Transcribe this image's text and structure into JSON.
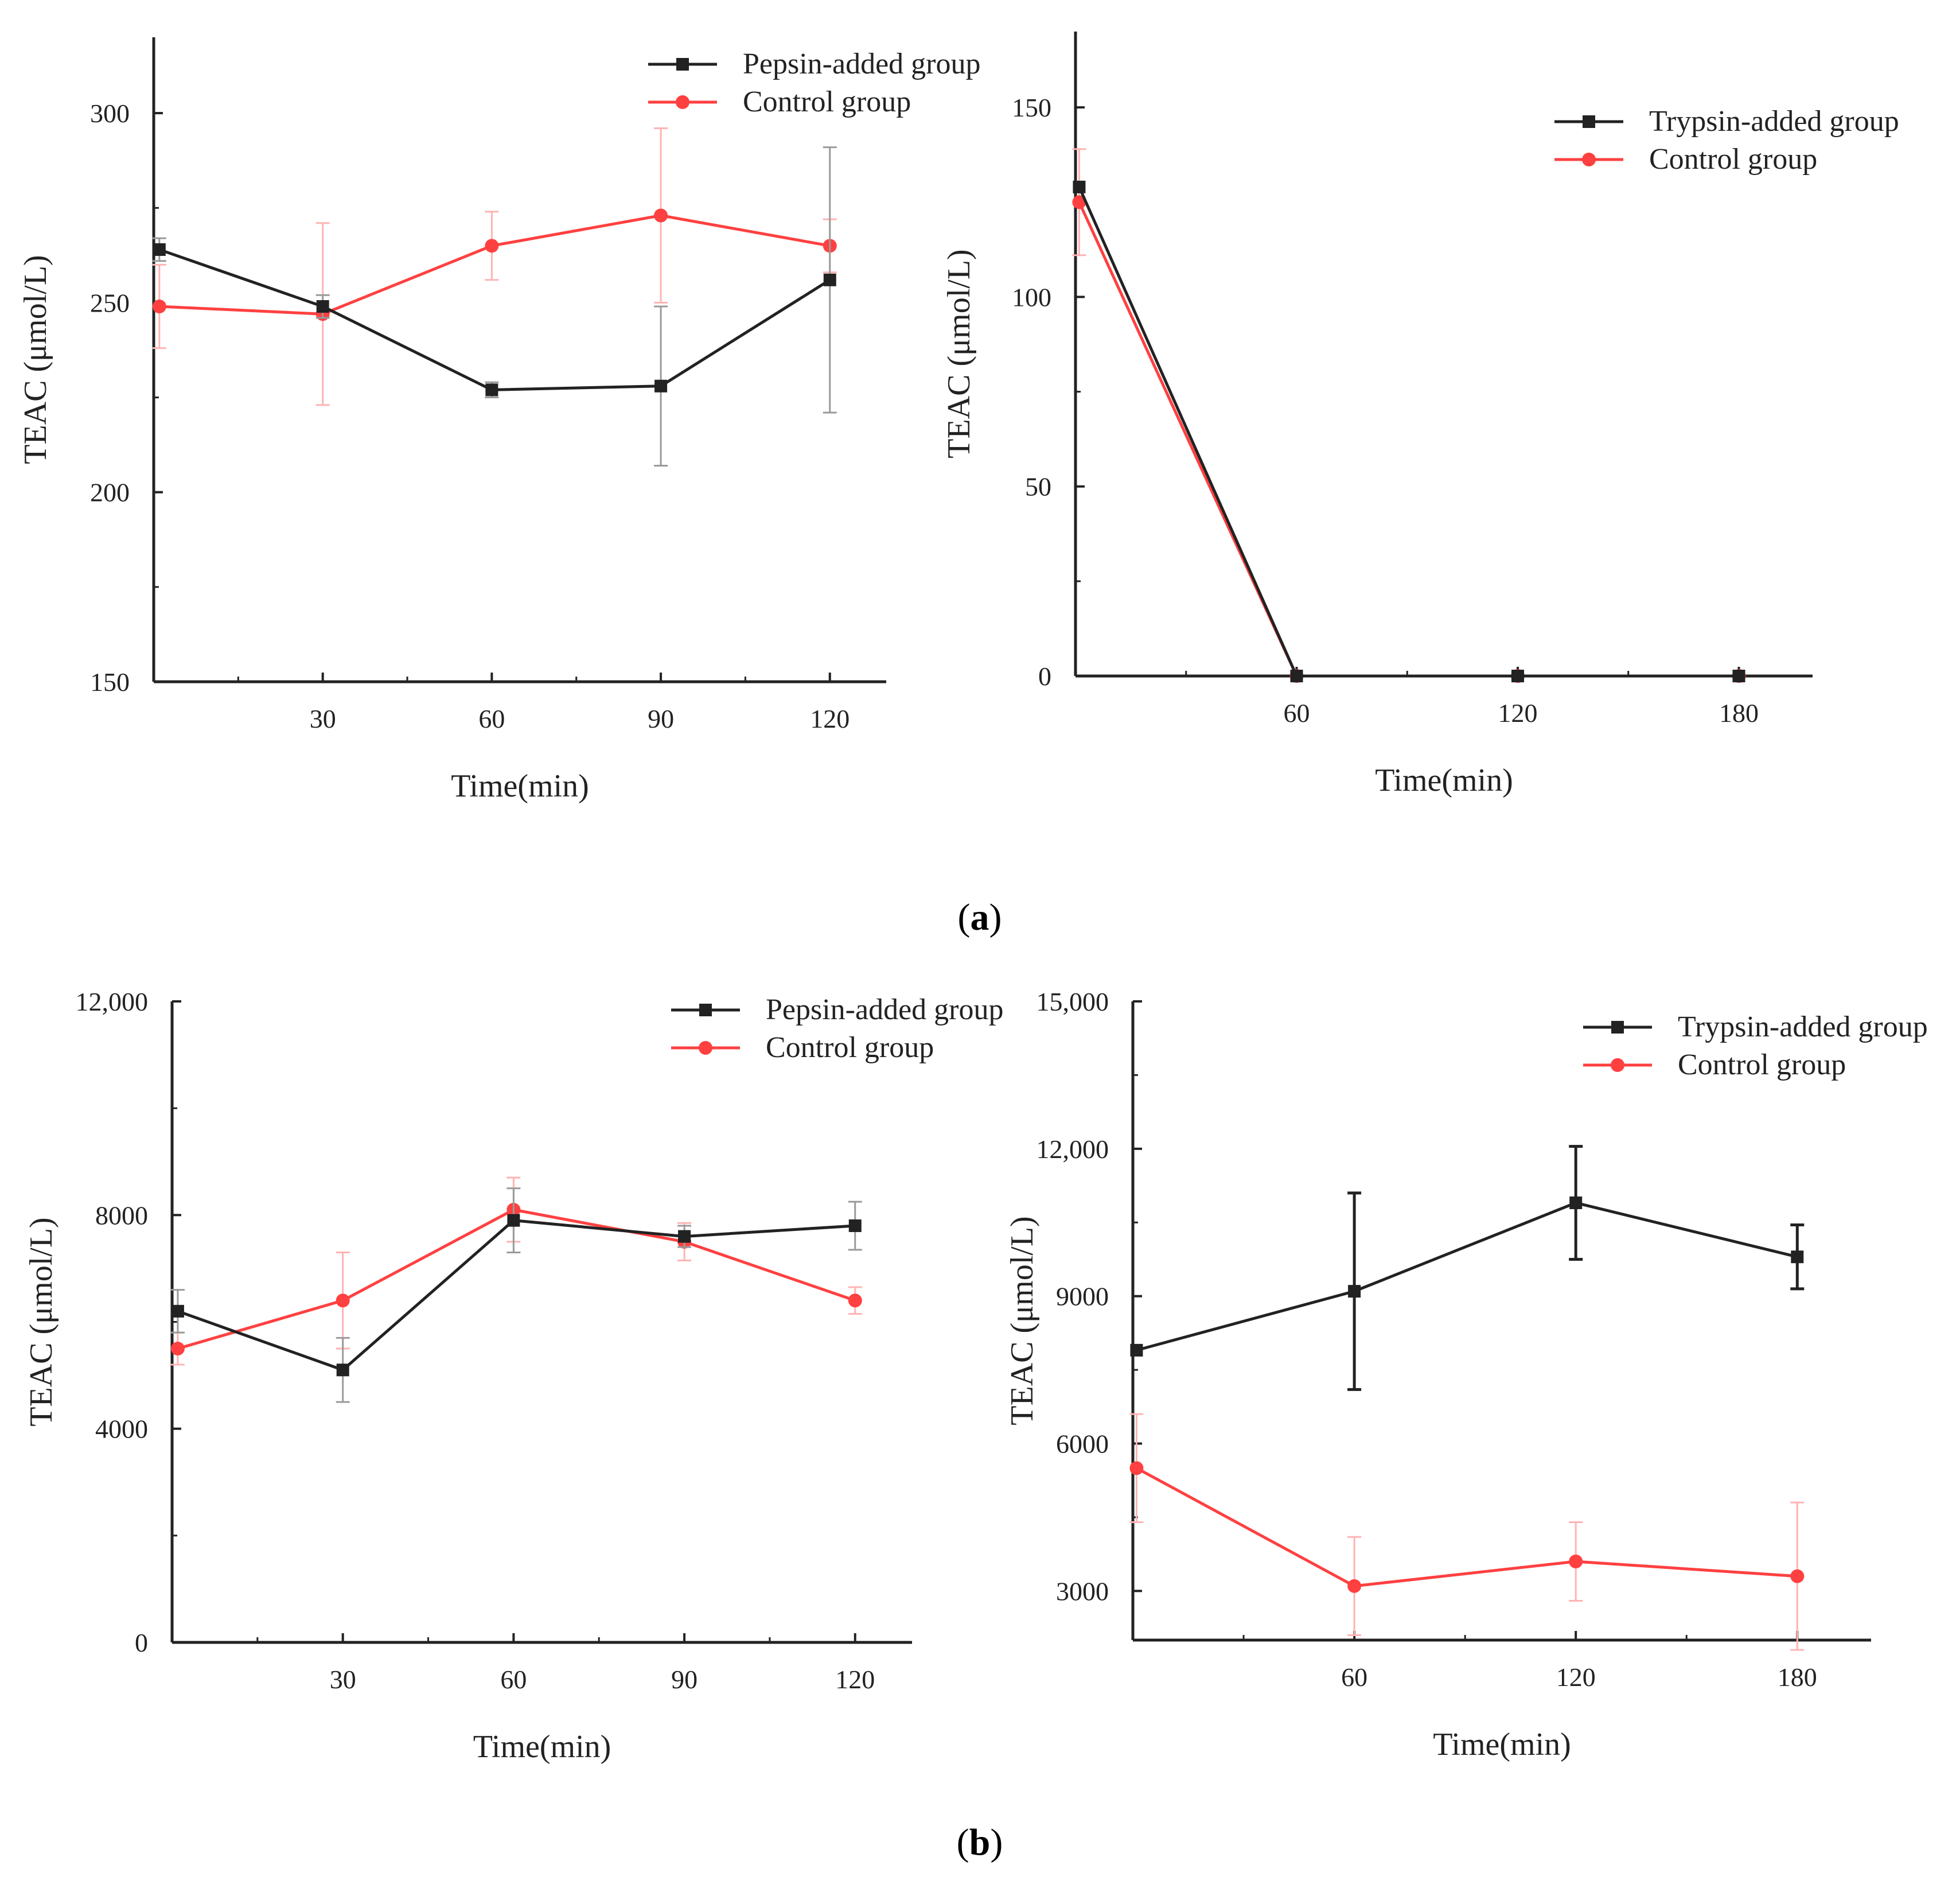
{
  "colors": {
    "black": "#222222",
    "red": "#ff4040",
    "red_err": "#ffb3b3",
    "grey_err": "#9a9a9a"
  },
  "panel_labels": {
    "a": "(a)",
    "b": "(b)",
    "a_letter": "a",
    "b_letter": "b"
  },
  "chart_data": [
    {
      "id": "a1",
      "type": "line",
      "xlabel": "Time(min)",
      "ylabel": "TEAC (μmol/L)",
      "xlim": [
        0,
        130
      ],
      "ylim": [
        150,
        320
      ],
      "xticks": [
        30,
        60,
        90,
        120
      ],
      "xtick_labels": [
        "30",
        "60",
        "90",
        "120"
      ],
      "yticks": [
        150,
        200,
        250,
        300
      ],
      "ytick_labels": [
        "150",
        "200",
        "250",
        "300"
      ],
      "legend_position": "top-right",
      "series": [
        {
          "name": "Pepsin-added group",
          "color": "black",
          "marker": "square",
          "x": [
            1,
            30,
            60,
            90,
            120
          ],
          "y": [
            264,
            249,
            227,
            228,
            256
          ],
          "err": [
            3,
            3,
            2,
            21,
            35
          ]
        },
        {
          "name": "Control group",
          "color": "red",
          "marker": "circle",
          "x": [
            1,
            30,
            60,
            90,
            120
          ],
          "y": [
            249,
            247,
            265,
            273,
            265
          ],
          "err": [
            11,
            24,
            9,
            23,
            7
          ]
        }
      ]
    },
    {
      "id": "a2",
      "type": "line",
      "xlabel": "Time(min)",
      "ylabel": "TEAC (μmol/L)",
      "xlim": [
        0,
        200
      ],
      "ylim": [
        0,
        170
      ],
      "xticks": [
        60,
        120,
        180
      ],
      "xtick_labels": [
        "60",
        "120",
        "180"
      ],
      "yticks": [
        0,
        50,
        100,
        150
      ],
      "ytick_labels": [
        "0",
        "50",
        "100",
        "150"
      ],
      "legend_position": "top-right",
      "series": [
        {
          "name": "Trypsin-added group",
          "color": "black",
          "marker": "square",
          "x": [
            1,
            60,
            120,
            180
          ],
          "y": [
            129,
            0,
            0,
            0
          ],
          "err": [
            0,
            0,
            0,
            0
          ]
        },
        {
          "name": "Control group",
          "color": "red",
          "marker": "circle",
          "x": [
            1,
            60,
            120,
            180
          ],
          "y": [
            125,
            0,
            0,
            0
          ],
          "err": [
            14,
            0,
            0,
            0
          ]
        }
      ]
    },
    {
      "id": "b1",
      "type": "line",
      "xlabel": "Time(min)",
      "ylabel": "TEAC (μmol/L)",
      "xlim": [
        0,
        130
      ],
      "ylim": [
        0,
        12000
      ],
      "xticks": [
        30,
        60,
        90,
        120
      ],
      "xtick_labels": [
        "30",
        "60",
        "90",
        "120"
      ],
      "yticks": [
        0,
        4000,
        8000,
        12000
      ],
      "ytick_labels": [
        "0",
        "4000",
        "8000",
        "12,000"
      ],
      "legend_position": "top-right",
      "series": [
        {
          "name": "Pepsin-added group",
          "color": "black",
          "marker": "square",
          "x": [
            1,
            30,
            60,
            90,
            120
          ],
          "y": [
            6200,
            5100,
            7900,
            7600,
            7800
          ],
          "err": [
            400,
            600,
            600,
            200,
            450
          ]
        },
        {
          "name": "Control group",
          "color": "red",
          "marker": "circle",
          "x": [
            1,
            30,
            60,
            90,
            120
          ],
          "y": [
            5500,
            6400,
            8100,
            7500,
            6400
          ],
          "err": [
            300,
            900,
            600,
            350,
            250
          ]
        }
      ]
    },
    {
      "id": "b2",
      "type": "line",
      "xlabel": "Time(min)",
      "ylabel": "TEAC (μmol/L)",
      "xlim": [
        0,
        200
      ],
      "ylim": [
        2000,
        15000
      ],
      "xticks": [
        60,
        120,
        180
      ],
      "xtick_labels": [
        "60",
        "120",
        "180"
      ],
      "yticks": [
        3000,
        6000,
        9000,
        12000,
        15000
      ],
      "ytick_labels": [
        "3000",
        "6000",
        "9000",
        "12,000",
        "15,000"
      ],
      "legend_position": "top-right",
      "series": [
        {
          "name": "Trypsin-added group",
          "color": "black",
          "marker": "square",
          "x": [
            1,
            60,
            120,
            180
          ],
          "y": [
            7900,
            9100,
            10900,
            9800
          ],
          "err": [
            0,
            2000,
            1150,
            650
          ]
        },
        {
          "name": "Control group",
          "color": "red",
          "marker": "circle",
          "x": [
            1,
            60,
            120,
            180
          ],
          "y": [
            5500,
            3100,
            3600,
            3300
          ],
          "err": [
            1100,
            1000,
            800,
            1500
          ]
        }
      ]
    }
  ]
}
